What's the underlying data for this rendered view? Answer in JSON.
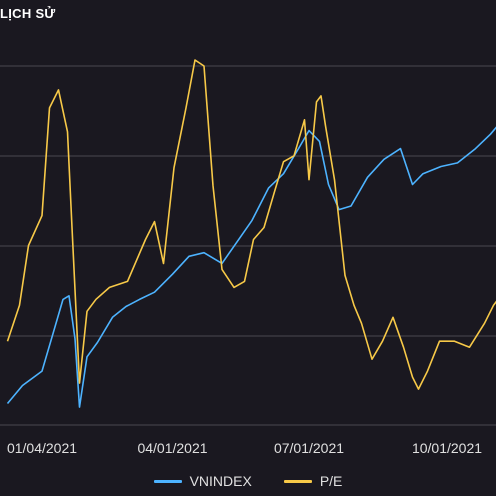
{
  "header": {
    "title": "LỊCH SỬ"
  },
  "chart_data": {
    "type": "line",
    "title": "LỊCH SỬ",
    "x_ticks": [
      "01/04/2021",
      "04/01/2021",
      "07/01/2021",
      "10/01/2021"
    ],
    "x_tick_dates": [
      "2021-01-04",
      "2021-04-01",
      "2021-07-01",
      "2021-10-01"
    ],
    "grid": true,
    "legend_position": "bottom-center",
    "series": [
      {
        "name": "VNINDEX",
        "color": "#4db3ff",
        "points": [
          [
            "2020-12-12",
            1030
          ],
          [
            "2020-12-22",
            1055
          ],
          [
            "2021-01-04",
            1075
          ],
          [
            "2021-01-11",
            1125
          ],
          [
            "2021-01-18",
            1175
          ],
          [
            "2021-01-22",
            1180
          ],
          [
            "2021-01-26",
            1120
          ],
          [
            "2021-01-29",
            1025
          ],
          [
            "2021-02-03",
            1095
          ],
          [
            "2021-02-10",
            1115
          ],
          [
            "2021-02-20",
            1150
          ],
          [
            "2021-03-01",
            1165
          ],
          [
            "2021-03-10",
            1175
          ],
          [
            "2021-03-20",
            1185
          ],
          [
            "2021-04-01",
            1210
          ],
          [
            "2021-04-12",
            1235
          ],
          [
            "2021-04-22",
            1240
          ],
          [
            "2021-05-04",
            1225
          ],
          [
            "2021-05-14",
            1255
          ],
          [
            "2021-05-24",
            1285
          ],
          [
            "2021-06-04",
            1330
          ],
          [
            "2021-06-14",
            1350
          ],
          [
            "2021-06-24",
            1385
          ],
          [
            "2021-07-01",
            1410
          ],
          [
            "2021-07-08",
            1395
          ],
          [
            "2021-07-14",
            1335
          ],
          [
            "2021-07-21",
            1300
          ],
          [
            "2021-07-29",
            1305
          ],
          [
            "2021-08-09",
            1345
          ],
          [
            "2021-08-20",
            1370
          ],
          [
            "2021-08-31",
            1385
          ],
          [
            "2021-09-08",
            1335
          ],
          [
            "2021-09-15",
            1350
          ],
          [
            "2021-09-27",
            1360
          ],
          [
            "2021-10-08",
            1365
          ],
          [
            "2021-10-20",
            1385
          ],
          [
            "2021-10-30",
            1405
          ],
          [
            "2021-11-09",
            1430
          ],
          [
            "2021-11-15",
            1450
          ]
        ]
      },
      {
        "name": "P/E",
        "color": "#f7c948",
        "points": [
          [
            "2020-12-12",
            15.9
          ],
          [
            "2020-12-20",
            16.5
          ],
          [
            "2020-12-26",
            17.5
          ],
          [
            "2021-01-04",
            18.0
          ],
          [
            "2021-01-09",
            19.8
          ],
          [
            "2021-01-15",
            20.1
          ],
          [
            "2021-01-21",
            19.4
          ],
          [
            "2021-01-24",
            17.8
          ],
          [
            "2021-01-29",
            15.2
          ],
          [
            "2021-02-03",
            16.4
          ],
          [
            "2021-02-09",
            16.6
          ],
          [
            "2021-02-18",
            16.8
          ],
          [
            "2021-03-02",
            16.9
          ],
          [
            "2021-03-14",
            17.6
          ],
          [
            "2021-03-20",
            17.9
          ],
          [
            "2021-03-26",
            17.2
          ],
          [
            "2021-04-02",
            18.8
          ],
          [
            "2021-04-10",
            19.8
          ],
          [
            "2021-04-16",
            20.6
          ],
          [
            "2021-04-22",
            20.5
          ],
          [
            "2021-04-28",
            18.5
          ],
          [
            "2021-05-04",
            17.1
          ],
          [
            "2021-05-12",
            16.8
          ],
          [
            "2021-05-19",
            16.9
          ],
          [
            "2021-05-25",
            17.6
          ],
          [
            "2021-06-01",
            17.8
          ],
          [
            "2021-06-08",
            18.4
          ],
          [
            "2021-06-14",
            18.9
          ],
          [
            "2021-06-21",
            19.0
          ],
          [
            "2021-06-28",
            19.6
          ],
          [
            "2021-07-01",
            18.6
          ],
          [
            "2021-07-06",
            19.9
          ],
          [
            "2021-07-09",
            20.0
          ],
          [
            "2021-07-12",
            19.5
          ],
          [
            "2021-07-18",
            18.6
          ],
          [
            "2021-07-25",
            17.0
          ],
          [
            "2021-07-31",
            16.5
          ],
          [
            "2021-08-05",
            16.2
          ],
          [
            "2021-08-12",
            15.6
          ],
          [
            "2021-08-19",
            15.9
          ],
          [
            "2021-08-26",
            16.3
          ],
          [
            "2021-09-02",
            15.8
          ],
          [
            "2021-09-08",
            15.3
          ],
          [
            "2021-09-12",
            15.1
          ],
          [
            "2021-09-18",
            15.4
          ],
          [
            "2021-09-26",
            15.9
          ],
          [
            "2021-10-06",
            15.9
          ],
          [
            "2021-10-16",
            15.8
          ],
          [
            "2021-10-26",
            16.2
          ],
          [
            "2021-11-01",
            16.5
          ],
          [
            "2021-11-07",
            16.7
          ],
          [
            "2021-11-12",
            16.4
          ],
          [
            "2021-11-15",
            16.6
          ]
        ]
      }
    ]
  },
  "legend": {
    "items": [
      {
        "label": "VNINDEX"
      },
      {
        "label": "P/E"
      }
    ]
  },
  "colors": {
    "background": "#1a1820",
    "grid": "#4a4850",
    "vnindex": "#4db3ff",
    "pe": "#f7c948"
  }
}
